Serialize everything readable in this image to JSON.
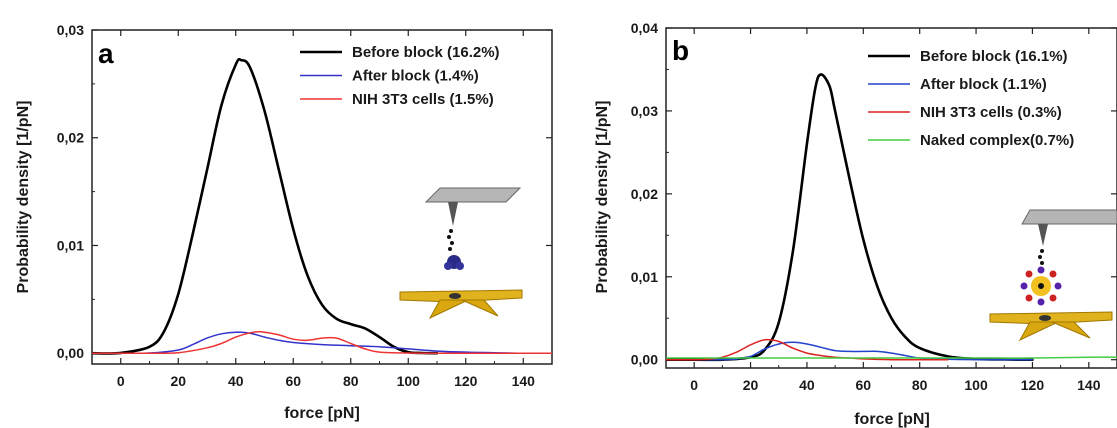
{
  "chart_data": [
    {
      "type": "line",
      "panel_label": "a",
      "xlabel": "force [pN]",
      "ylabel": "Probability density [1/pN]",
      "xlim": [
        -10,
        150
      ],
      "ylim": [
        -0.001,
        0.03
      ],
      "x_ticks": [
        0,
        20,
        40,
        60,
        80,
        100,
        120,
        140
      ],
      "x_tick_labels": [
        "0",
        "20",
        "40",
        "60",
        "80",
        "100",
        "120",
        "140"
      ],
      "y_ticks": [
        0,
        0.01,
        0.02,
        0.03
      ],
      "y_tick_labels": [
        "0,00",
        "0,01",
        "0,02",
        "0,03"
      ],
      "legend_position": "top-right",
      "series": [
        {
          "name": "Before block (16.2%)",
          "color": "#000000",
          "x": [
            -10,
            0,
            10,
            15,
            20,
            25,
            30,
            35,
            40,
            42,
            45,
            50,
            55,
            60,
            65,
            70,
            75,
            80,
            85,
            90,
            95,
            100,
            105,
            110
          ],
          "y": [
            0,
            3e-05,
            0.0006,
            0.002,
            0.0055,
            0.011,
            0.017,
            0.023,
            0.0268,
            0.0272,
            0.0265,
            0.0225,
            0.017,
            0.0115,
            0.0072,
            0.0045,
            0.0032,
            0.0027,
            0.0023,
            0.0015,
            0.0006,
            0.0001,
            2e-05,
            0
          ]
        },
        {
          "name": "After block (1.4%)",
          "color": "#3333cc",
          "x": [
            -10,
            0,
            10,
            20,
            25,
            30,
            35,
            40,
            45,
            50,
            55,
            60,
            70,
            80,
            90,
            100,
            110,
            120,
            130,
            138
          ],
          "y": [
            0,
            0,
            2e-05,
            0.0003,
            0.0008,
            0.0014,
            0.0018,
            0.00195,
            0.00185,
            0.0015,
            0.0012,
            0.001,
            0.0008,
            0.0007,
            0.0006,
            0.0004,
            0.0002,
            0.0001,
            5e-05,
            0
          ]
        },
        {
          "name": "NIH 3T3 cells (1.5%)",
          "color": "#ee3333",
          "x": [
            -10,
            0,
            10,
            20,
            30,
            35,
            40,
            45,
            48,
            50,
            55,
            60,
            65,
            70,
            75,
            80,
            85,
            90,
            100,
            110,
            120,
            130,
            150
          ],
          "y": [
            0,
            0,
            0,
            5e-05,
            0.0005,
            0.0009,
            0.0015,
            0.0019,
            0.002,
            0.00195,
            0.0017,
            0.0013,
            0.0012,
            0.0014,
            0.0014,
            0.0009,
            0.0004,
            0.0001,
            2e-05,
            0,
            0,
            0,
            0
          ]
        }
      ]
    },
    {
      "type": "line",
      "panel_label": "b",
      "xlabel": "force [pN]",
      "ylabel": "Probability density [1/pN]",
      "xlim": [
        -10,
        150
      ],
      "ylim": [
        -0.001,
        0.04
      ],
      "x_ticks": [
        0,
        20,
        40,
        60,
        80,
        100,
        120,
        140
      ],
      "x_tick_labels": [
        "0",
        "20",
        "40",
        "60",
        "80",
        "100",
        "120",
        "140"
      ],
      "y_ticks": [
        0,
        0.01,
        0.02,
        0.03,
        0.04
      ],
      "y_tick_labels": [
        "0,00",
        "0,01",
        "0,02",
        "0,03",
        "0,04"
      ],
      "legend_position": "top-right",
      "series": [
        {
          "name": "Before block (16.1%)",
          "color": "#000000",
          "x": [
            -10,
            0,
            10,
            20,
            25,
            30,
            35,
            40,
            43,
            45,
            48,
            50,
            55,
            60,
            65,
            70,
            75,
            80,
            90,
            100,
            110,
            120
          ],
          "y": [
            0,
            0,
            0,
            0.0003,
            0.0012,
            0.0045,
            0.013,
            0.026,
            0.0328,
            0.0344,
            0.033,
            0.03,
            0.022,
            0.0145,
            0.0088,
            0.005,
            0.0027,
            0.0014,
            0.0004,
            0.0001,
            2e-05,
            0
          ]
        },
        {
          "name": "After block (1.1%)",
          "color": "#2244cc",
          "x": [
            -10,
            0,
            10,
            15,
            20,
            25,
            30,
            35,
            40,
            45,
            50,
            55,
            60,
            65,
            70,
            75,
            80,
            90,
            100,
            120
          ],
          "y": [
            0,
            0,
            0,
            8e-05,
            0.0004,
            0.0013,
            0.0019,
            0.0021,
            0.0019,
            0.0015,
            0.0011,
            0.001,
            0.001,
            0.001,
            0.0008,
            0.0005,
            0.0002,
            5e-05,
            0,
            0
          ]
        },
        {
          "name": "NIH 3T3 cells (0.3%)",
          "color": "#dd2222",
          "x": [
            -10,
            0,
            5,
            10,
            15,
            20,
            25,
            30,
            35,
            40,
            45,
            50,
            55,
            60,
            70,
            80,
            90
          ],
          "y": [
            0,
            0,
            5e-05,
            0.0003,
            0.0009,
            0.0018,
            0.0024,
            0.0022,
            0.0014,
            0.0008,
            0.0005,
            0.0003,
            0.0002,
            0.0001,
            0,
            0,
            0
          ]
        },
        {
          "name": "Naked complex(0.7%)",
          "color": "#44cc44",
          "x": [
            -10,
            0,
            20,
            40,
            60,
            80,
            100,
            120,
            140,
            150
          ],
          "y": [
            0.0002,
            0.0002,
            0.0002,
            0.0002,
            0.0002,
            0.0002,
            0.0002,
            0.0002,
            0.0003,
            0.0003
          ]
        }
      ]
    }
  ]
}
